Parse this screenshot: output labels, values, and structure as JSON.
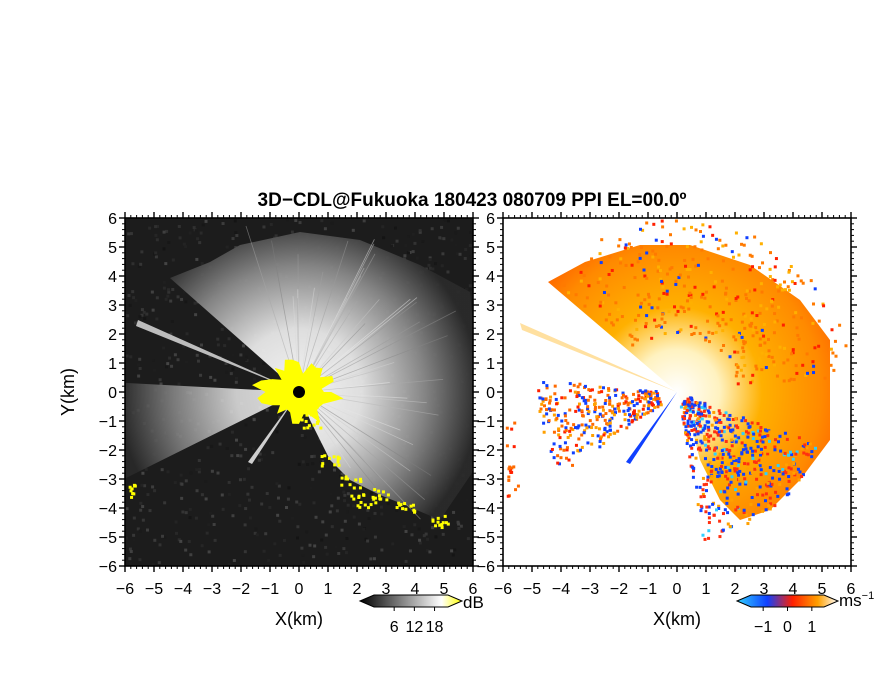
{
  "chart_data": {
    "title": "3D−CDL@Fukuoka 180423 080709 PPI EL=00.0º",
    "panels": [
      {
        "id": "left",
        "type": "heatmap",
        "xlabel": "X(km)",
        "ylabel": "Y(km)",
        "xlim": [
          -6,
          6
        ],
        "ylim": [
          -6,
          6
        ],
        "xticks": [
          "−6",
          "−5",
          "−4",
          "−3",
          "−2",
          "−1",
          "0",
          "1",
          "2",
          "3",
          "4",
          "5",
          "6"
        ],
        "yticks": [
          "−6",
          "−5",
          "−4",
          "−3",
          "−2",
          "−1",
          "0",
          "1",
          "2",
          "3",
          "4",
          "5",
          "6"
        ],
        "colorbar": {
          "unit": "dB",
          "ticks": [
            "6",
            "12",
            "18"
          ],
          "range": [
            0,
            22
          ],
          "colors": [
            "#000000",
            "#ffffff",
            "#ffff00"
          ]
        },
        "background_color": "#1c1c1c",
        "high_value_color": "#ffff00"
      },
      {
        "id": "right",
        "type": "heatmap",
        "xlabel": "X(km)",
        "xlim": [
          -6,
          6
        ],
        "ylim": [
          -6,
          6
        ],
        "xticks": [
          "−6",
          "−5",
          "−4",
          "−3",
          "−2",
          "−1",
          "0",
          "1",
          "2",
          "3",
          "4",
          "5",
          "6"
        ],
        "yticks": [
          "−6",
          "−5",
          "−4",
          "−3",
          "−2",
          "−1",
          "0",
          "1",
          "2",
          "3",
          "4",
          "5",
          "6"
        ],
        "colorbar": {
          "unit": "ms",
          "unit_exponent": "−1",
          "ticks": [
            "−1",
            "0",
            "1"
          ],
          "range": [
            -1.5,
            1.5
          ],
          "colors": [
            "#30d0ff",
            "#1040ff",
            "#ff3010",
            "#ffa000",
            "#ffffff"
          ]
        },
        "background_color": "#ffffff"
      }
    ]
  }
}
